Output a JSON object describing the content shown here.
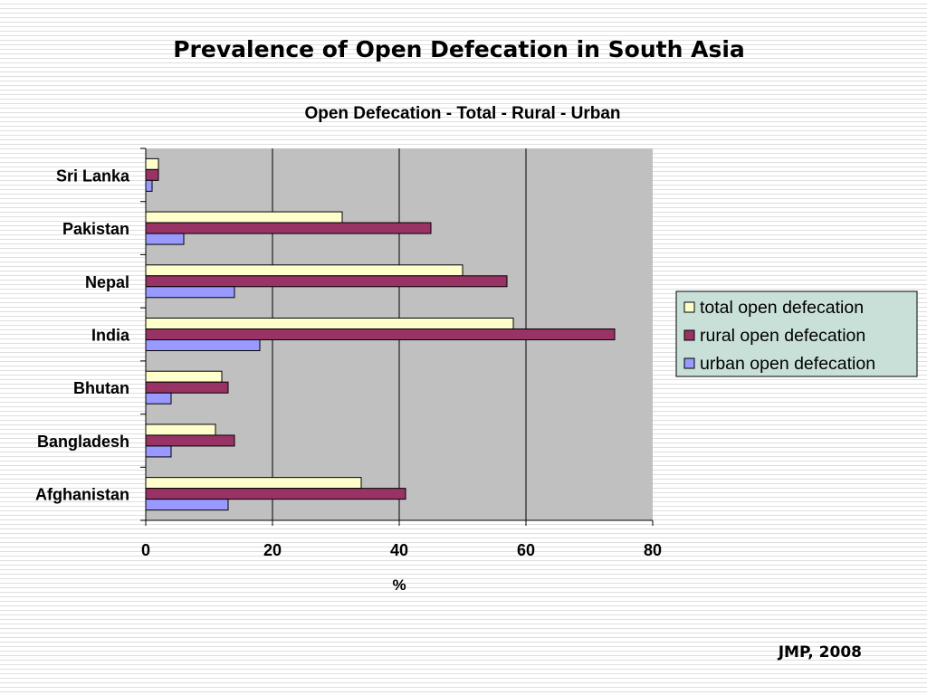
{
  "slide": {
    "title": "Prevalence of Open Defecation in South Asia",
    "source": "JMP, 2008"
  },
  "colors": {
    "plot_background": "#c0c0c0",
    "legend_background": "#c8e0d8",
    "total": "#ffffcc",
    "rural": "#993366",
    "urban": "#9999ff"
  },
  "chart_data": {
    "type": "bar",
    "orientation": "horizontal",
    "title": "Open Defecation - Total - Rural - Urban",
    "xlabel": "%",
    "ylabel": "",
    "categories": [
      "Sri Lanka",
      "Pakistan",
      "Nepal",
      "India",
      "Bhutan",
      "Bangladesh",
      "Afghanistan"
    ],
    "series": [
      {
        "name": "total open defecation",
        "color": "#ffffcc",
        "values": [
          2,
          31,
          50,
          58,
          12,
          11,
          34
        ]
      },
      {
        "name": "rural open defecation",
        "color": "#993366",
        "values": [
          2,
          45,
          57,
          74,
          13,
          14,
          41
        ]
      },
      {
        "name": "urban open defecation",
        "color": "#9999ff",
        "values": [
          1,
          6,
          14,
          18,
          4,
          4,
          13
        ]
      }
    ],
    "xlim": [
      0,
      80
    ],
    "xticks": [
      0,
      20,
      40,
      60,
      80
    ],
    "grid": "vertical",
    "legend_position": "right"
  }
}
